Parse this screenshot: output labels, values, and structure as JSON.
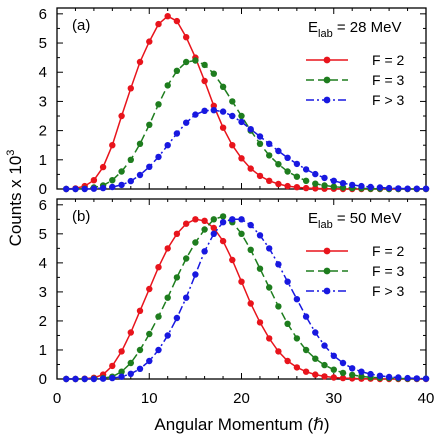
{
  "chart_data": {
    "type": "line",
    "xlabel": "Angular Momentum (ℏ)",
    "ylabel": "Counts x 10",
    "ylabel_exponent": "3",
    "xlim": [
      0,
      40
    ],
    "ylim": [
      0,
      6.2
    ],
    "xticks": [
      0,
      10,
      20,
      30,
      40
    ],
    "yticks": [
      0,
      1,
      2,
      3,
      4,
      5,
      6
    ],
    "x": [
      1,
      2,
      3,
      4,
      5,
      6,
      7,
      8,
      9,
      10,
      11,
      12,
      13,
      14,
      15,
      16,
      17,
      18,
      19,
      20,
      21,
      22,
      23,
      24,
      25,
      26,
      27,
      28,
      29,
      30,
      31,
      32,
      33,
      34,
      35,
      36,
      37,
      38,
      39,
      40
    ],
    "panels": [
      {
        "label": "(a)",
        "energy_prefix": "E",
        "energy_subscript": "lab",
        "energy_value": " = 28 MeV",
        "legend_position": "top-right",
        "series": [
          {
            "name": "F = 2",
            "color": "#e8141c",
            "dash": "solid",
            "values": [
              0.0,
              0.02,
              0.1,
              0.3,
              0.75,
              1.5,
              2.5,
              3.45,
              4.35,
              5.05,
              5.65,
              5.92,
              5.75,
              5.2,
              4.5,
              3.7,
              2.85,
              2.1,
              1.5,
              1.05,
              0.7,
              0.45,
              0.28,
              0.17,
              0.1,
              0.06,
              0.03,
              0.02,
              0.01,
              0.01,
              0,
              0,
              0,
              0,
              0,
              0,
              0,
              0,
              0,
              0
            ]
          },
          {
            "name": "F = 3",
            "color": "#1e7d1e",
            "dash": "dashed",
            "values": [
              0.0,
              0.0,
              0.01,
              0.05,
              0.12,
              0.3,
              0.6,
              1.0,
              1.55,
              2.2,
              2.9,
              3.55,
              4.05,
              4.35,
              4.4,
              4.25,
              3.95,
              3.5,
              3.0,
              2.5,
              2.0,
              1.55,
              1.15,
              0.85,
              0.6,
              0.42,
              0.28,
              0.18,
              0.12,
              0.08,
              0.05,
              0.03,
              0.02,
              0.01,
              0.01,
              0,
              0,
              0,
              0,
              0
            ]
          },
          {
            "name": "F > 3",
            "color": "#1818e0",
            "dash": "dashdot",
            "values": [
              0.0,
              0.0,
              0.0,
              0.01,
              0.03,
              0.07,
              0.14,
              0.27,
              0.48,
              0.76,
              1.1,
              1.5,
              1.9,
              2.27,
              2.55,
              2.68,
              2.7,
              2.65,
              2.5,
              2.3,
              2.05,
              1.8,
              1.55,
              1.3,
              1.07,
              0.86,
              0.67,
              0.51,
              0.38,
              0.28,
              0.2,
              0.14,
              0.1,
              0.07,
              0.05,
              0.03,
              0.02,
              0.01,
              0.01,
              0.01
            ]
          }
        ]
      },
      {
        "label": "(b)",
        "energy_prefix": "E",
        "energy_subscript": "lab",
        "energy_value": " = 50 MeV",
        "legend_position": "top-right",
        "series": [
          {
            "name": "F = 2",
            "color": "#e8141c",
            "dash": "solid",
            "values": [
              0.0,
              0.0,
              0.01,
              0.04,
              0.15,
              0.45,
              0.95,
              1.6,
              2.35,
              3.1,
              3.85,
              4.5,
              5.0,
              5.35,
              5.5,
              5.45,
              5.2,
              4.75,
              4.1,
              3.35,
              2.6,
              1.95,
              1.4,
              0.95,
              0.62,
              0.4,
              0.25,
              0.15,
              0.09,
              0.05,
              0.03,
              0.02,
              0.01,
              0.01,
              0,
              0,
              0,
              0,
              0,
              0
            ]
          },
          {
            "name": "F = 3",
            "color": "#1e7d1e",
            "dash": "dashed",
            "values": [
              0.0,
              0.0,
              0.0,
              0.01,
              0.03,
              0.08,
              0.25,
              0.55,
              1.0,
              1.55,
              2.15,
              2.8,
              3.5,
              4.15,
              4.7,
              5.15,
              5.5,
              5.6,
              5.4,
              5.0,
              4.45,
              3.8,
              3.15,
              2.5,
              1.9,
              1.4,
              1.0,
              0.7,
              0.48,
              0.32,
              0.21,
              0.14,
              0.09,
              0.06,
              0.04,
              0.03,
              0.02,
              0.01,
              0.01,
              0.01
            ]
          },
          {
            "name": "F > 3",
            "color": "#1818e0",
            "dash": "dashdot",
            "values": [
              0.0,
              0.0,
              0.0,
              0.0,
              0.01,
              0.03,
              0.08,
              0.18,
              0.35,
              0.62,
              1.0,
              1.5,
              2.1,
              2.8,
              3.6,
              4.4,
              5.0,
              5.4,
              5.5,
              5.5,
              5.3,
              4.95,
              4.5,
              3.95,
              3.35,
              2.75,
              2.15,
              1.6,
              1.15,
              0.8,
              0.55,
              0.37,
              0.25,
              0.17,
              0.11,
              0.07,
              0.05,
              0.03,
              0.02,
              0.01
            ]
          }
        ]
      }
    ]
  }
}
